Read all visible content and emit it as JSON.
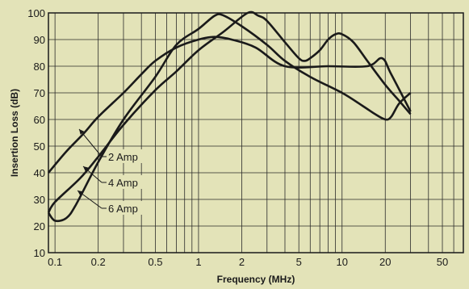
{
  "chart_data": {
    "type": "line",
    "xlabel": "Frequency (MHz)",
    "ylabel": "Insertion Loss (dB)",
    "x_scale": "log",
    "xlim": [
      0.09,
      70
    ],
    "ylim": [
      10,
      100
    ],
    "grid": true,
    "x_ticks": [
      {
        "value": 0.1,
        "label": "0.1"
      },
      {
        "value": 0.2,
        "label": "0.2"
      },
      {
        "value": 0.5,
        "label": "0.5"
      },
      {
        "value": 1,
        "label": "1"
      },
      {
        "value": 2,
        "label": "2"
      },
      {
        "value": 5,
        "label": "5"
      },
      {
        "value": 10,
        "label": "10"
      },
      {
        "value": 20,
        "label": "20"
      },
      {
        "value": 50,
        "label": "50"
      }
    ],
    "y_ticks": [
      {
        "value": 10,
        "label": "10"
      },
      {
        "value": 20,
        "label": "20"
      },
      {
        "value": 30,
        "label": "30"
      },
      {
        "value": 40,
        "label": "40"
      },
      {
        "value": 50,
        "label": "50"
      },
      {
        "value": 60,
        "label": "60"
      },
      {
        "value": 70,
        "label": "70"
      },
      {
        "value": 80,
        "label": "80"
      },
      {
        "value": 90,
        "label": "90"
      },
      {
        "value": 100,
        "label": "100"
      }
    ],
    "series": [
      {
        "name": "2 Amp",
        "points": [
          [
            0.09,
            40
          ],
          [
            0.12,
            48
          ],
          [
            0.16,
            55
          ],
          [
            0.2,
            61
          ],
          [
            0.3,
            70
          ],
          [
            0.4,
            77
          ],
          [
            0.5,
            82
          ],
          [
            0.7,
            87
          ],
          [
            1.0,
            90
          ],
          [
            1.3,
            91
          ],
          [
            1.7,
            90
          ],
          [
            2.5,
            87
          ],
          [
            4,
            80
          ],
          [
            8,
            80
          ],
          [
            15,
            80
          ],
          [
            19,
            83
          ],
          [
            22,
            77
          ],
          [
            30,
            63
          ]
        ]
      },
      {
        "name": "4 Amp",
        "points": [
          [
            0.09,
            25
          ],
          [
            0.1,
            29
          ],
          [
            0.15,
            38
          ],
          [
            0.2,
            46
          ],
          [
            0.3,
            58
          ],
          [
            0.5,
            71
          ],
          [
            0.7,
            78
          ],
          [
            1,
            86
          ],
          [
            1.5,
            93
          ],
          [
            2.2,
            100
          ],
          [
            2.6,
            99
          ],
          [
            3,
            97
          ],
          [
            4,
            89
          ],
          [
            5,
            83
          ],
          [
            5.5,
            82
          ],
          [
            6,
            83
          ],
          [
            7,
            86
          ],
          [
            8,
            90
          ],
          [
            9,
            92
          ],
          [
            10,
            92
          ],
          [
            12,
            89
          ],
          [
            15,
            82
          ],
          [
            20,
            73
          ],
          [
            25,
            67
          ],
          [
            30,
            62
          ]
        ]
      },
      {
        "name": "6 Amp",
        "points": [
          [
            0.09,
            25
          ],
          [
            0.1,
            22
          ],
          [
            0.12,
            23
          ],
          [
            0.14,
            28
          ],
          [
            0.2,
            44
          ],
          [
            0.3,
            60
          ],
          [
            0.5,
            76
          ],
          [
            0.7,
            88
          ],
          [
            1,
            94
          ],
          [
            1.3,
            99
          ],
          [
            1.5,
            99
          ],
          [
            2,
            95
          ],
          [
            3,
            88
          ],
          [
            4,
            82
          ],
          [
            6,
            76
          ],
          [
            10,
            70
          ],
          [
            14,
            65
          ],
          [
            17,
            62
          ],
          [
            20,
            60
          ],
          [
            22,
            61
          ],
          [
            25,
            66
          ],
          [
            30,
            70
          ]
        ]
      }
    ],
    "annotations": [
      {
        "text": "2 Amp",
        "series": "2 Amp"
      },
      {
        "text": "4 Amp",
        "series": "4 Amp"
      },
      {
        "text": "6 Amp",
        "series": "6 Amp"
      }
    ]
  }
}
